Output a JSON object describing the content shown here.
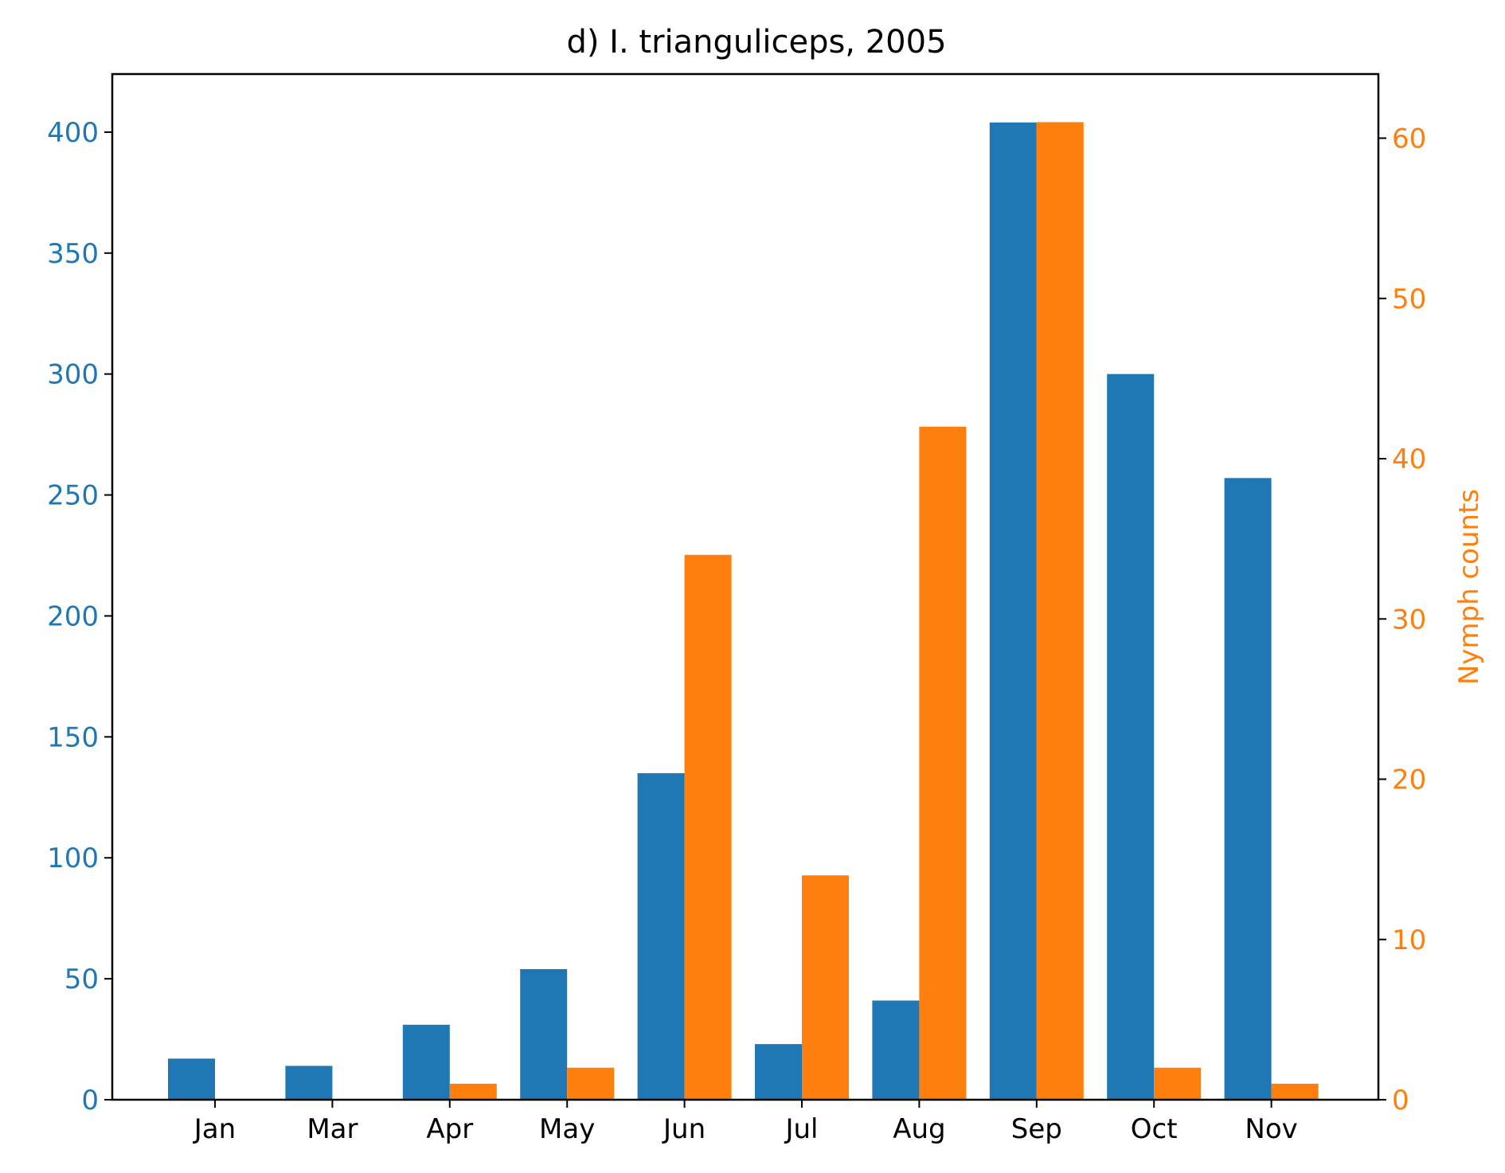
{
  "chart_data": {
    "type": "bar",
    "title": "d) I. trianguliceps, 2005",
    "categories": [
      "Jan",
      "Mar",
      "Apr",
      "May",
      "Jun",
      "Jul",
      "Aug",
      "Sep",
      "Oct",
      "Nov"
    ],
    "series": [
      {
        "axis": "left",
        "color": "#1f77b4",
        "values": [
          17,
          14,
          31,
          54,
          135,
          23,
          41,
          404,
          300,
          257
        ]
      },
      {
        "name": "Nymph counts",
        "axis": "right",
        "color": "#ff7f0e",
        "values": [
          0,
          0,
          1,
          2,
          34,
          14,
          42,
          61,
          2,
          1
        ]
      }
    ],
    "y_left": {
      "label": "",
      "ylim": [
        0,
        424
      ],
      "ticks": [
        0,
        50,
        100,
        150,
        200,
        250,
        300,
        350,
        400
      ],
      "color": "#1f77b4"
    },
    "y_right": {
      "label": "Nymph counts",
      "ylim": [
        0,
        64
      ],
      "ticks": [
        0,
        10,
        20,
        30,
        40,
        50,
        60
      ],
      "color": "#ff7f0e"
    },
    "xlabel": "",
    "grid": false,
    "legend": "none"
  }
}
